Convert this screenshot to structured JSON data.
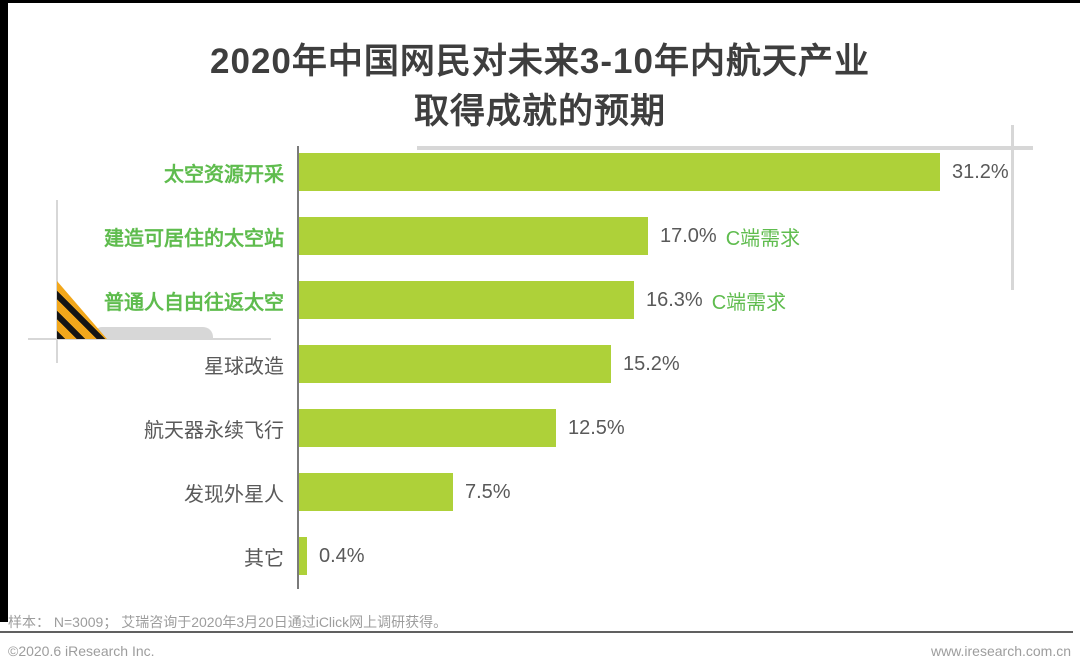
{
  "title": {
    "line1": "2020年中国网民对未来3-10年内航天产业",
    "line2": "取得成就的预期"
  },
  "chart_data": {
    "type": "bar",
    "orientation": "horizontal",
    "title": "2020年中国网民对未来3-10年内航天产业取得成就的预期",
    "categories": [
      "太空资源开采",
      "建造可居住的太空站",
      "普通人自由往返太空",
      "星球改造",
      "航天器永续飞行",
      "发现外星人",
      "其它"
    ],
    "values": [
      31.2,
      17.0,
      16.3,
      15.2,
      12.5,
      7.5,
      0.4
    ],
    "value_labels": [
      "31.2%",
      "17.0%",
      "16.3%",
      "15.2%",
      "12.5%",
      "7.5%",
      "0.4%"
    ],
    "annotations": [
      "",
      "C端需求",
      "C端需求",
      "",
      "",
      "",
      ""
    ],
    "highlighted_categories": [
      true,
      true,
      true,
      false,
      false,
      false,
      false
    ],
    "xlabel": "",
    "ylabel": "",
    "xlim": [
      0,
      35
    ],
    "grid": false,
    "legend": "none"
  },
  "footer": {
    "note": "样本： N=3009； 艾瑞咨询于2020年3月20日通过iClick网上调研获得。",
    "copyright": "©2020.6 iResearch Inc.",
    "website": "www.iresearch.com.cn"
  },
  "colors": {
    "bar_green": "#AED139",
    "label_green": "#5FBC4E",
    "text_dark": "#595959",
    "deco_gray": "#D7D7D7",
    "hazard_yellow": "#F2A71B",
    "frame_black": "#000000"
  }
}
